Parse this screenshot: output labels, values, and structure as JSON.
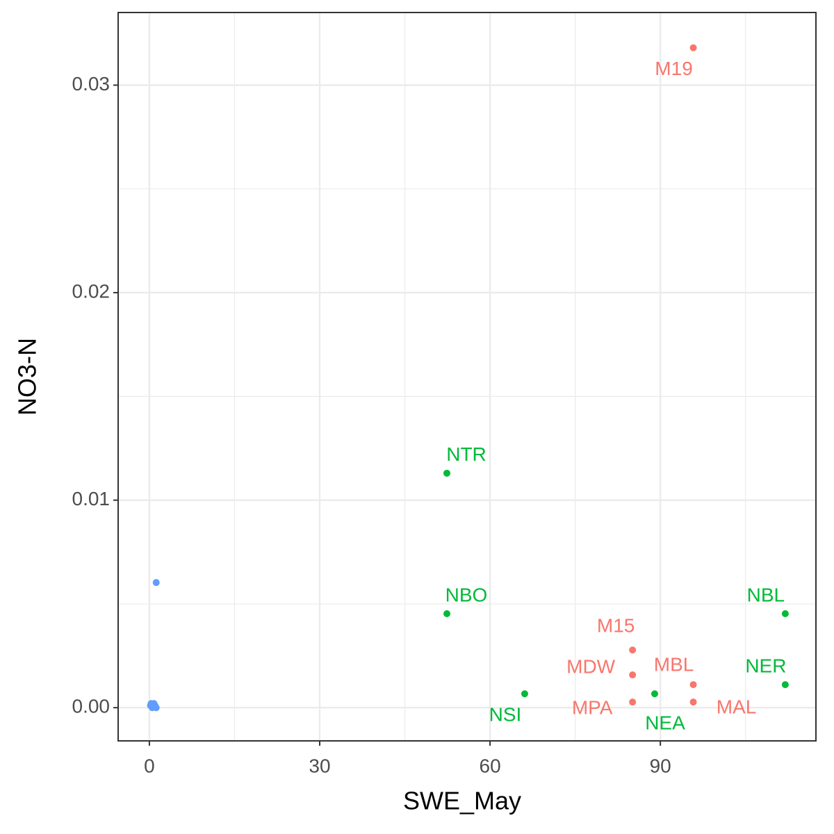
{
  "chart_data": {
    "type": "scatter",
    "x_label": "SWE_May",
    "y_label": "NO3-N",
    "xlim": [
      -5.5,
      117.4
    ],
    "ylim": [
      -0.0016,
      0.0335
    ],
    "xticks": [
      0,
      30,
      60,
      90
    ],
    "yticks": [
      {
        "value": 0,
        "label": "0.00"
      },
      0.01,
      0.02,
      0.03
    ],
    "grid": true,
    "minor_grid": true,
    "series": [
      {
        "color": "#F8766D",
        "x": [
          95.8,
          85.1,
          85.1,
          95.8,
          85.1,
          95.8
        ],
        "values": [
          0.0318,
          0.00278,
          0.00158,
          0.00111,
          0.00027,
          0.00027
        ],
        "labels": [
          "M19",
          "M15",
          "MDW",
          "MBL",
          "MPA",
          "MAL"
        ]
      },
      {
        "color": "#00BA38",
        "x": [
          52.4,
          52.4,
          112.0,
          112.0,
          66.1,
          89.0
        ],
        "values": [
          0.0113,
          0.00453,
          0.00453,
          0.00111,
          0.00067,
          0.00067
        ],
        "labels": [
          "NTR",
          "NBO",
          "NBL",
          "NER",
          "NSI",
          "NEA"
        ]
      },
      {
        "color": "#619CFF",
        "x": [
          1.2,
          0.2,
          0.5,
          0.8,
          1.0,
          1.2,
          0.3
        ],
        "values": [
          0.00603,
          0.0001,
          0.0,
          0.0002,
          0.0001,
          0.0,
          0.0002
        ]
      }
    ]
  }
}
